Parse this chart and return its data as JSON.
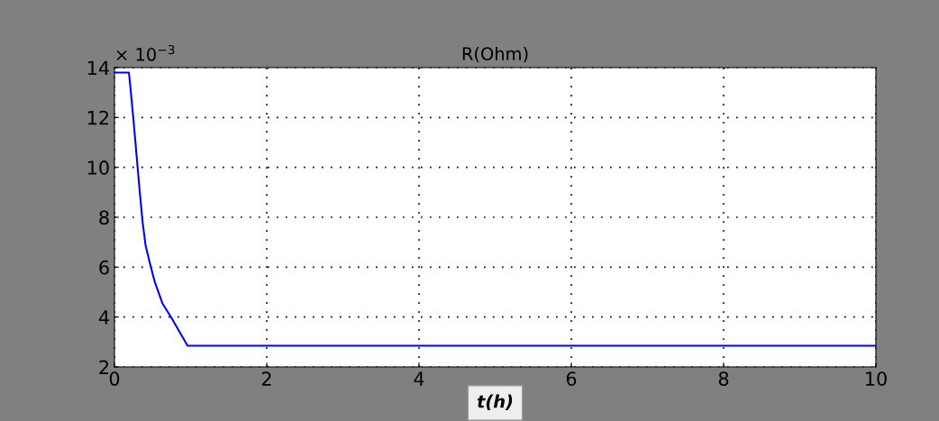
{
  "chart_data": {
    "type": "line",
    "title": "R(Ohm)",
    "xlabel": "t(h)",
    "annotations": [
      "× 10$^{−3}$"
    ],
    "x": [
      0,
      0.19,
      0.21,
      0.25,
      0.29,
      0.33,
      0.37,
      0.41,
      0.47,
      0.53,
      0.63,
      0.75,
      0.96,
      10
    ],
    "series": [
      {
        "color": "#0000ff",
        "values": [
          13.8,
          13.8,
          13.2,
          11.9,
          10.5,
          9.1,
          7.8,
          6.85,
          6.1,
          5.4,
          4.55,
          3.96,
          2.85,
          2.85
        ]
      }
    ],
    "xlim": [
      0,
      10
    ],
    "xticks": [
      0,
      2,
      4,
      6,
      8,
      10
    ],
    "ylim": [
      2,
      14
    ],
    "yticks": [
      2,
      4,
      6,
      8,
      10,
      12,
      14
    ],
    "grid": true,
    "line_style": "solid",
    "marker": "none"
  }
}
